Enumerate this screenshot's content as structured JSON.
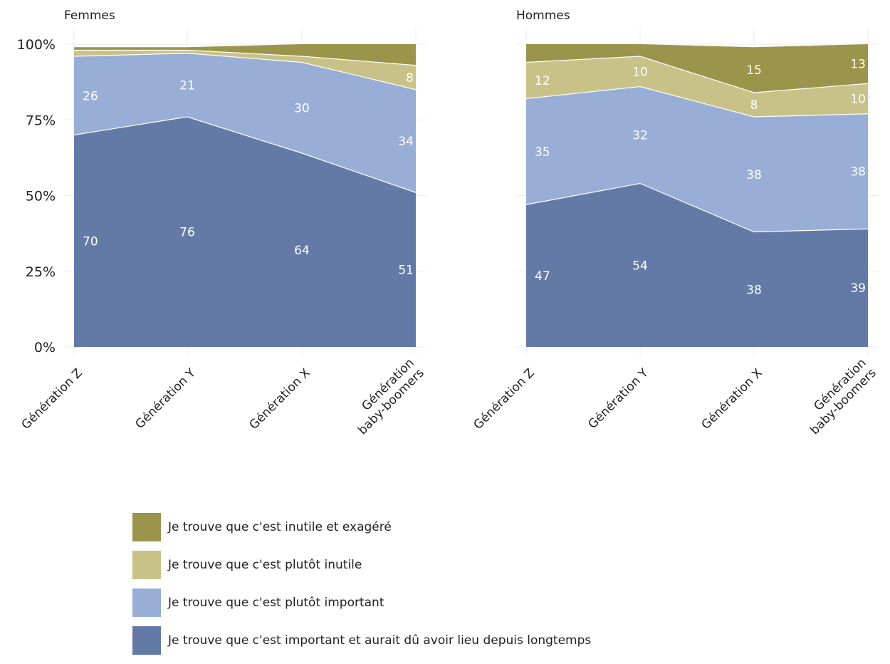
{
  "chart_data": {
    "type": "area",
    "stacked": true,
    "categories": [
      "Génération Z",
      "Génération Y",
      "Génération X",
      "Génération baby-boomers"
    ],
    "category_lines": [
      [
        "Génération Z"
      ],
      [
        "Génération Y"
      ],
      [
        "Génération X"
      ],
      [
        "Génération",
        "baby-boomers"
      ]
    ],
    "y_ticks": [
      "0%",
      "25%",
      "50%",
      "75%",
      "100%"
    ],
    "ylim": [
      0,
      100
    ],
    "grid": true,
    "legend_position": "bottom",
    "series": [
      {
        "key": "s1",
        "name": "Je trouve que c'est important et aurait dû avoir lieu depuis longtemps",
        "color": "#637aa6"
      },
      {
        "key": "s2",
        "name": "Je trouve que c'est plutôt important",
        "color": "#98aed6"
      },
      {
        "key": "s3",
        "name": "Je trouve que c'est plutôt inutile",
        "color": "#c8c288"
      },
      {
        "key": "s4",
        "name": "Je trouve que c'est inutile et exagéré",
        "color": "#9b954c"
      }
    ],
    "panels": [
      {
        "title": "Femmes",
        "values": {
          "s1": [
            70,
            76,
            64,
            51
          ],
          "s2": [
            26,
            21,
            30,
            34
          ],
          "s3": [
            2,
            1,
            2,
            8
          ],
          "s4": [
            1,
            1,
            4,
            7
          ]
        },
        "labels": {
          "s1": [
            "70",
            "76",
            "64",
            "51"
          ],
          "s2": [
            "26",
            "21",
            "30",
            "34"
          ],
          "s3": [
            "",
            "",
            "",
            "8"
          ],
          "s4": [
            "",
            "",
            "",
            ""
          ]
        }
      },
      {
        "title": "Hommes",
        "values": {
          "s1": [
            47,
            54,
            38,
            39
          ],
          "s2": [
            35,
            32,
            38,
            38
          ],
          "s3": [
            12,
            10,
            8,
            10
          ],
          "s4": [
            6,
            4,
            15,
            13
          ]
        },
        "labels": {
          "s1": [
            "47",
            "54",
            "38",
            "39"
          ],
          "s2": [
            "35",
            "32",
            "38",
            "38"
          ],
          "s3": [
            "12",
            "10",
            "8",
            "10"
          ],
          "s4": [
            "",
            "",
            "15",
            "13"
          ]
        }
      }
    ]
  },
  "legend": [
    {
      "label": "Je trouve que c'est inutile et exagéré",
      "color": "#9b954c"
    },
    {
      "label": "Je trouve que c'est plutôt inutile",
      "color": "#c8c288"
    },
    {
      "label": "Je trouve que c'est plutôt important",
      "color": "#98aed6"
    },
    {
      "label": "Je trouve que c'est important et aurait dû avoir lieu depuis longtemps",
      "color": "#637aa6"
    }
  ]
}
